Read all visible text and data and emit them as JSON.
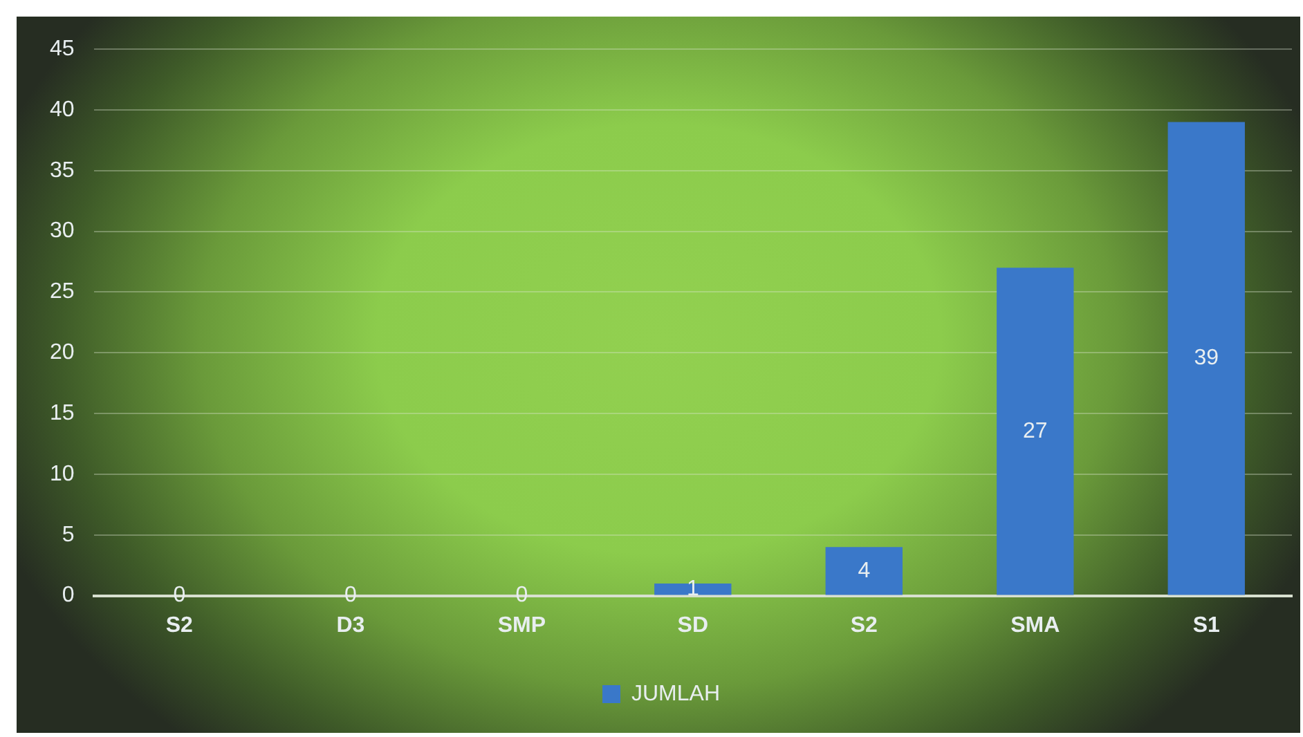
{
  "chart_data": {
    "type": "bar",
    "categories": [
      "S2",
      "D3",
      "SMP",
      "SD",
      "S2",
      "SMA",
      "S1"
    ],
    "series": [
      {
        "name": "JUMLAH",
        "color": "#3a78c9",
        "values": [
          0,
          0,
          0,
          1,
          4,
          27,
          39
        ]
      }
    ],
    "ylim": [
      0,
      45
    ],
    "yticks": [
      0,
      5,
      10,
      15,
      20,
      25,
      30,
      35,
      40,
      45
    ],
    "grid": "y",
    "legend": "bottom",
    "data_labels": true
  }
}
